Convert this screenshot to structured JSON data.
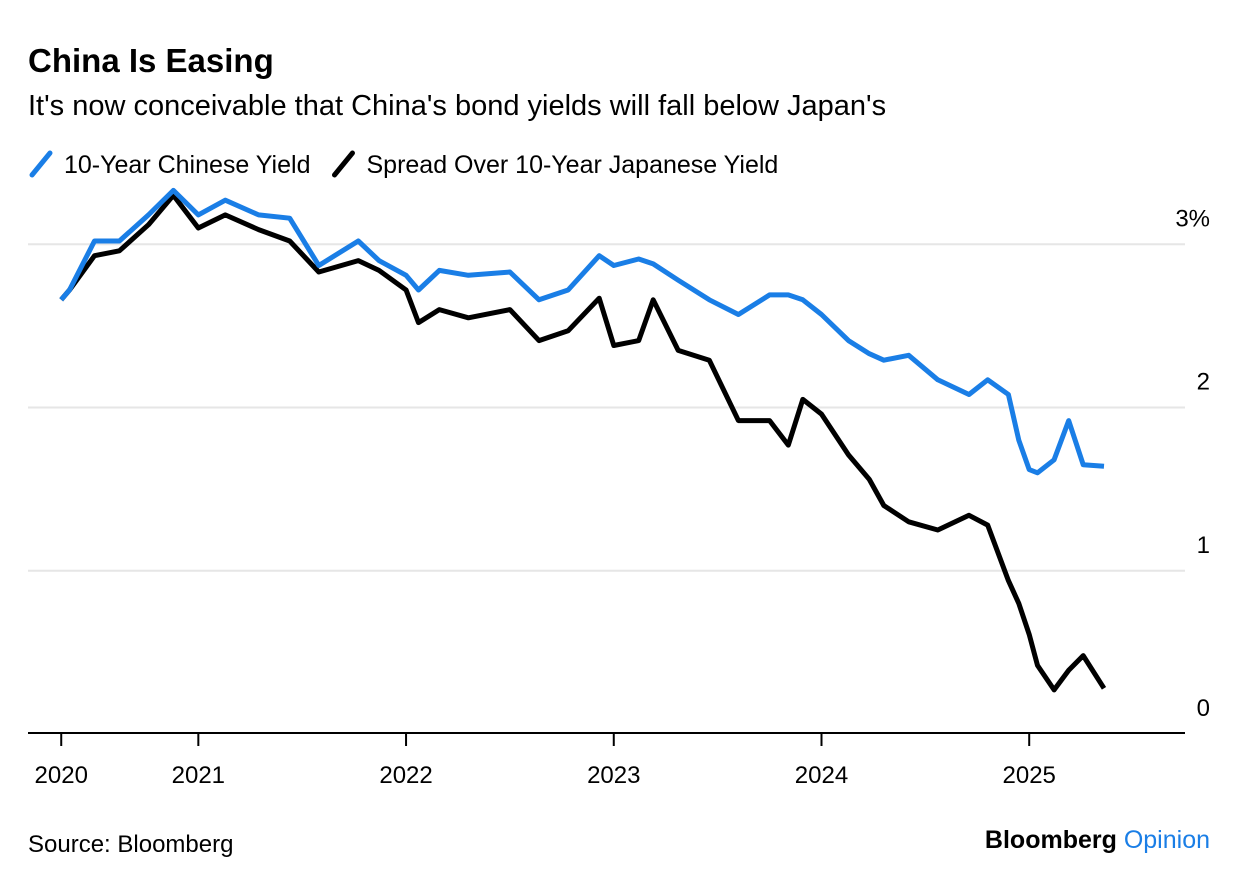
{
  "chart_data": {
    "type": "line",
    "title": "China Is Easing",
    "subtitle": "It's now conceivable that China's bond yields will fall below Japan's",
    "source": "Source: Bloomberg",
    "brand": [
      "Bloomberg",
      "Opinion"
    ],
    "x": [
      2020.34,
      2020.38,
      2020.5,
      2020.62,
      2020.76,
      2020.88,
      2021.0,
      2021.13,
      2021.29,
      2021.44,
      2021.58,
      2021.77,
      2021.87,
      2022.0,
      2022.06,
      2022.16,
      2022.3,
      2022.5,
      2022.64,
      2022.78,
      2022.93,
      2023.0,
      2023.12,
      2023.19,
      2023.31,
      2023.46,
      2023.6,
      2023.75,
      2023.84,
      2023.91,
      2024.0,
      2024.13,
      2024.23,
      2024.3,
      2024.42,
      2024.56,
      2024.71,
      2024.8,
      2024.9,
      2024.95,
      2025.0,
      2025.04,
      2025.12,
      2025.19,
      2025.26,
      2025.36
    ],
    "series": [
      {
        "name": "10-Year Chinese Yield",
        "color": "#1a7ee6",
        "values": [
          2.66,
          2.72,
          3.02,
          3.02,
          3.18,
          3.33,
          3.18,
          3.27,
          3.18,
          3.16,
          2.87,
          3.02,
          2.9,
          2.81,
          2.72,
          2.84,
          2.81,
          2.83,
          2.66,
          2.72,
          2.93,
          2.87,
          2.91,
          2.88,
          2.78,
          2.66,
          2.57,
          2.69,
          2.69,
          2.66,
          2.57,
          2.41,
          2.33,
          2.29,
          2.32,
          2.17,
          2.08,
          2.17,
          2.08,
          1.8,
          1.62,
          1.6,
          1.68,
          1.92,
          1.65,
          1.64
        ]
      },
      {
        "name": "Spread Over 10-Year Japanese Yield",
        "color": "#000000",
        "values": [
          2.66,
          2.72,
          2.93,
          2.96,
          3.12,
          3.3,
          3.1,
          3.18,
          3.09,
          3.02,
          2.83,
          2.9,
          2.84,
          2.72,
          2.52,
          2.6,
          2.55,
          2.6,
          2.41,
          2.47,
          2.67,
          2.38,
          2.41,
          2.66,
          2.35,
          2.29,
          1.92,
          1.92,
          1.77,
          2.05,
          1.96,
          1.71,
          1.56,
          1.4,
          1.3,
          1.25,
          1.34,
          1.28,
          0.94,
          0.8,
          0.61,
          0.42,
          0.27,
          0.39,
          0.48,
          0.28
        ]
      }
    ],
    "xlim": [
      2020.18,
      2025.75
    ],
    "xticks": [
      {
        "value": 2020.34,
        "label": "2020"
      },
      2021,
      2022,
      2023,
      2024,
      2025
    ],
    "ylim": [
      0,
      3.4
    ],
    "yticks": [
      0,
      1,
      2,
      {
        "value": 3,
        "label": "3%"
      }
    ],
    "grid": true
  }
}
